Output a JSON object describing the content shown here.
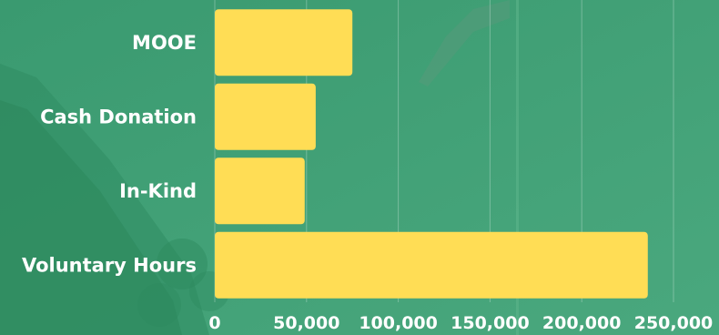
{
  "chart_data": {
    "type": "bar",
    "orientation": "horizontal",
    "categories": [
      "MOOE",
      "Cash Donation",
      "In-Kind",
      "Voluntary Hours"
    ],
    "values": [
      75000,
      55000,
      49000,
      236000
    ],
    "xlim": [
      0,
      250000
    ],
    "xticks": [
      "0",
      "50,000",
      "100,000",
      "150,000",
      "200,000",
      "250,000"
    ],
    "grid": true,
    "bar_color": "#FFDD55",
    "background_color": "#3E9E74"
  }
}
